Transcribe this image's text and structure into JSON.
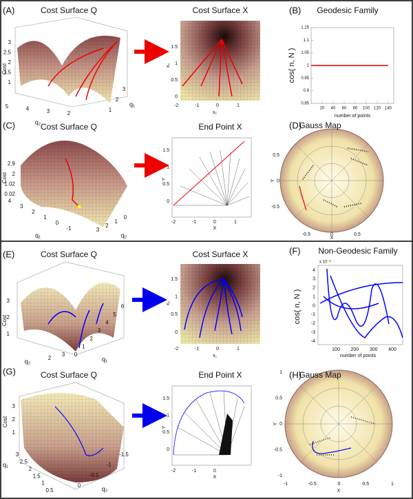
{
  "panels": {
    "a": {
      "letter": "(A)",
      "title": "Cost Surface Q",
      "cost_ticks": [
        "1",
        "1.5",
        "2",
        "2.5",
        "3"
      ],
      "cost_label": "Cost",
      "q2_ticks": [
        "5",
        "4",
        "3",
        "2"
      ],
      "q2_label": "q₂",
      "q1_ticks": [
        "1",
        "2",
        "3"
      ],
      "q1_label": "q₁"
    },
    "a2": {
      "title": "Cost Surface X",
      "y_ticks": [
        "1.5",
        "1",
        "0.5",
        "0"
      ],
      "y_label": "x₂",
      "x_ticks": [
        "-2",
        "-1",
        "0",
        "1"
      ],
      "x_label": "x₁"
    },
    "b": {
      "letter": "(B)",
      "title": "Geodesic Family",
      "y_label": "cos( n, N )",
      "x_label": "number of points",
      "plot": {
        "type": "line",
        "x": [
          0,
          140
        ],
        "values": [
          1,
          1
        ],
        "color": "#d40000",
        "xlim": [
          0,
          150
        ],
        "ylim": [
          0.85,
          1.15
        ],
        "xticks": [
          20,
          40,
          60,
          80,
          100,
          120,
          140
        ],
        "yticks": [
          0.85,
          0.9,
          0.95,
          1,
          1.05,
          1.1,
          1.15
        ]
      }
    },
    "c": {
      "letter": "(C)",
      "title": "Cost Surface Q",
      "cost_ticks": [
        "2.9",
        "2",
        "1.02",
        "0.02"
      ],
      "cost_label": "Cost",
      "q1_ticks": [
        "4",
        "3",
        "2",
        "1",
        "0",
        "-1"
      ],
      "q1_label": "q₁",
      "q2_ticks": [
        "0",
        "1",
        "2",
        "3"
      ],
      "q2_label": "q₂"
    },
    "c2": {
      "title": "End Point X",
      "y_ticks": [
        "1.5",
        "1",
        "0.5",
        "0"
      ],
      "y_label": "Y",
      "x_ticks": [
        "-2",
        "-1",
        "0",
        "1"
      ],
      "x_label": "X"
    },
    "d": {
      "letter": "(D)",
      "title": "Gauss Map",
      "y_ticks": [
        "0.5",
        "0",
        "-0.5"
      ],
      "y_label": "Y",
      "x_ticks": [
        "-0.5",
        "0",
        "0.5"
      ],
      "x_label": "X"
    },
    "e": {
      "letter": "(E)",
      "title": "Cost Surface Q",
      "cost_ticks": [
        "1",
        "2",
        "3"
      ],
      "cost_label": "Cost",
      "q2_ticks": [
        "2",
        "3"
      ],
      "q2_label": "q₂",
      "q1_ticks": [
        "0",
        "1",
        "2",
        "3",
        "4",
        "5",
        "6"
      ],
      "q1_label": "q₁"
    },
    "e2": {
      "title": "Cost Surface X",
      "y_ticks": [
        "1.5",
        "1",
        "0.5",
        "0"
      ],
      "y_label": "x₂",
      "x_ticks": [
        "-2",
        "-1",
        "0",
        "1"
      ],
      "x_label": "x₁"
    },
    "f": {
      "letter": "(F)",
      "title": "Non-Geodesic Family",
      "exponent": "x 10⁻³",
      "y_ticks": [
        "4",
        "3",
        "2",
        "1",
        "0",
        "-1",
        "-2",
        "-3",
        "-4"
      ],
      "y_label": "cos( n, N )",
      "x_ticks": [
        "100",
        "200",
        "300",
        "400"
      ],
      "x_label": "number of points"
    },
    "g": {
      "letter": "(G)",
      "title": "Cost Surface Q",
      "cost_ticks": [
        "1",
        "2",
        "3"
      ],
      "cost_label": "Cost",
      "q1_ticks": [
        "3",
        "2.5",
        "2",
        "1.5",
        "1",
        "0.5"
      ],
      "q1_label": "q₁",
      "q2_ticks": [
        "0",
        "-0.5",
        "-1",
        "-1.5"
      ],
      "q2_label": "q₂"
    },
    "g2": {
      "title": "End Point X",
      "y_ticks": [
        "1.5",
        "1",
        "0.5",
        "0"
      ],
      "y_label": "Y",
      "x_ticks": [
        "-2",
        "-1",
        "0"
      ],
      "x_label": "X"
    },
    "h": {
      "letter": "(H)",
      "title": "Gauss Map",
      "y_ticks": [
        "1",
        "0.5",
        "0",
        "-0.5",
        "-1"
      ],
      "y_label": "Y",
      "x_ticks": [
        "-1",
        "-0.5",
        "0",
        "0.5",
        "1"
      ],
      "x_label": "X"
    }
  }
}
